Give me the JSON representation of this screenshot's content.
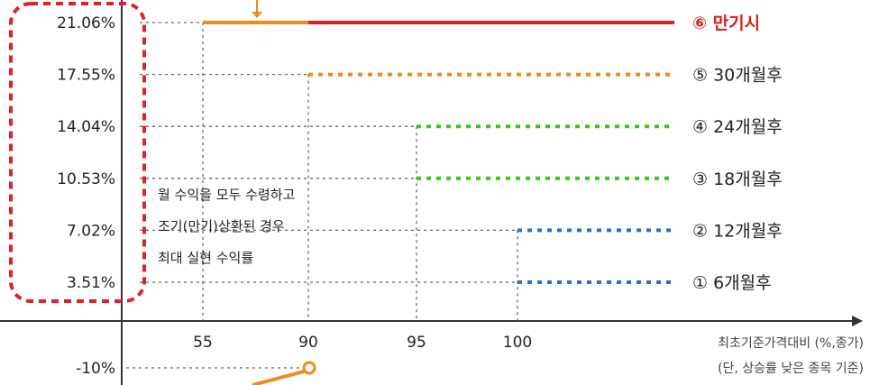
{
  "chart_data": {
    "type": "line",
    "y_ticks": [
      "21.06%",
      "17.55%",
      "14.04%",
      "10.53%",
      "7.02%",
      "3.51%"
    ],
    "y_values": [
      21.06,
      17.55,
      14.04,
      10.53,
      7.02,
      3.51
    ],
    "negative_tick": {
      "label": "-10%",
      "value": -10
    },
    "x_ticks": [
      "55",
      "90",
      "95",
      "100"
    ],
    "x_label_line1": "최초기준가격대비 (%,종가)",
    "x_label_line2": "(단, 상승률 낮은 종목 기준)",
    "annotation_lines": [
      "월 수익을 모두 수령하고",
      "조기(만기)상환된 경우",
      "최대 실현 수익률"
    ],
    "series": [
      {
        "name": "⑥ 만기시",
        "threshold": "55",
        "y": 21.06,
        "color": "#d62020",
        "style": "solid"
      },
      {
        "name": "⑤ 30개월후",
        "threshold": "90",
        "y": 17.55,
        "color": "#f08a1c",
        "style": "dotted"
      },
      {
        "name": "④ 24개월후",
        "threshold": "95",
        "y": 14.04,
        "color": "#3ec41a",
        "style": "dotted"
      },
      {
        "name": "③ 18개월후",
        "threshold": "95",
        "y": 10.53,
        "color": "#3ec41a",
        "style": "dotted"
      },
      {
        "name": "② 12개월후",
        "threshold": "100",
        "y": 7.02,
        "color": "#2a6fd6",
        "style": "dotted"
      },
      {
        "name": "① 6개월후",
        "threshold": "100",
        "y": 3.51,
        "color": "#2a6fd6",
        "style": "dotted"
      }
    ],
    "colors": {
      "highlight_box": "#e0202a",
      "orange": "#f08a1c",
      "axis": "#333333",
      "guide": "#666666"
    }
  }
}
